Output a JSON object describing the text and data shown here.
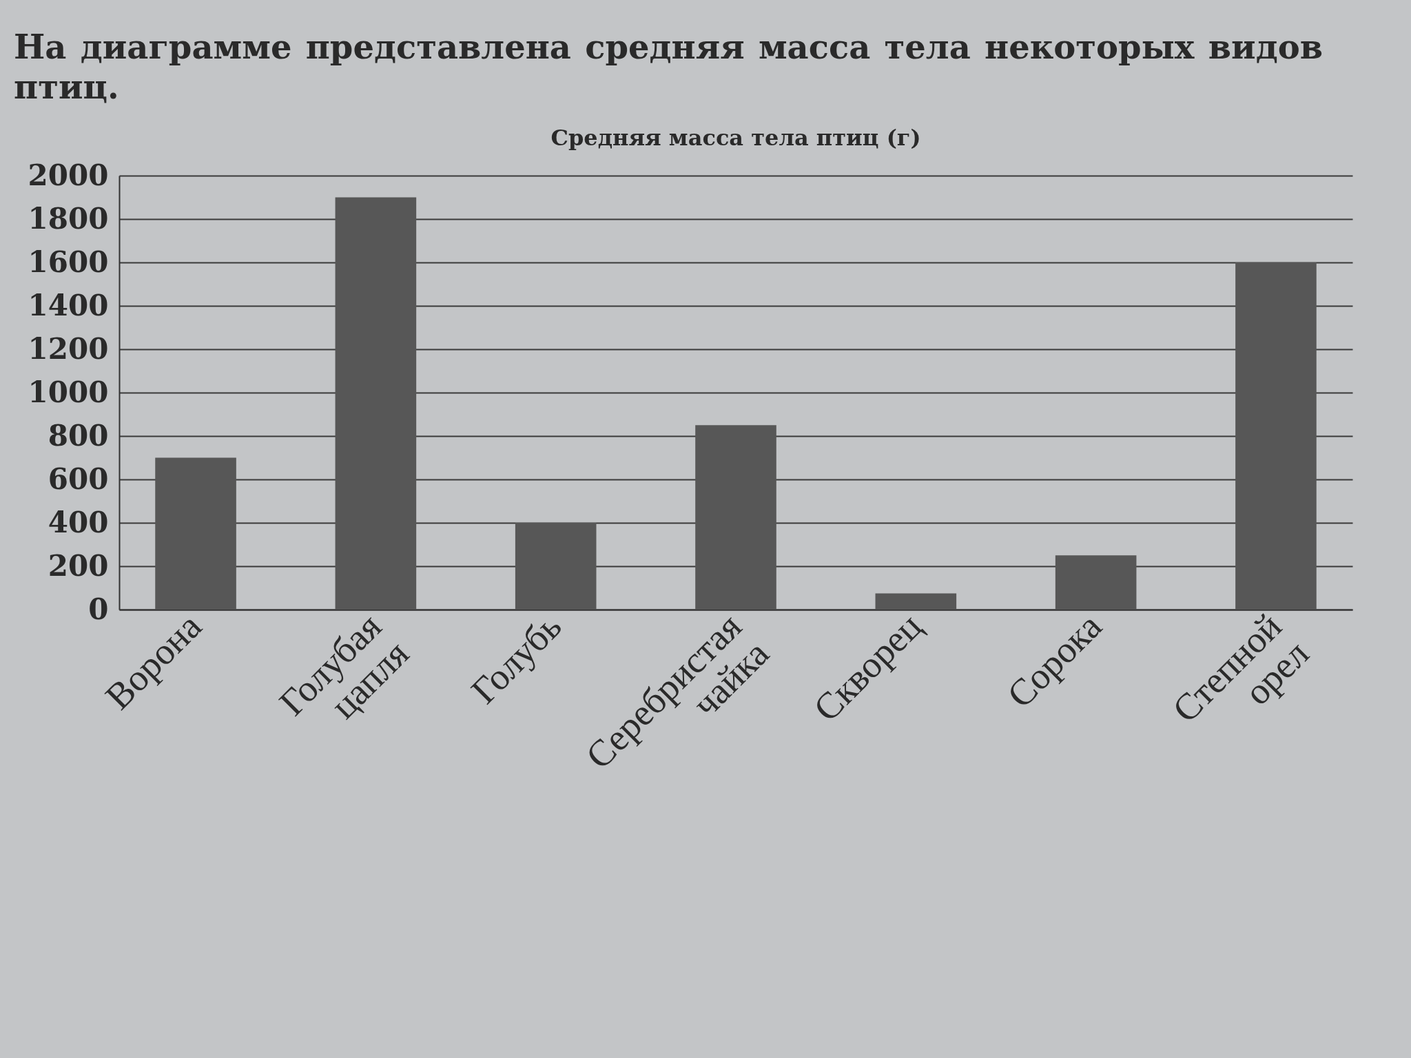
{
  "chart_data": {
    "type": "bar",
    "title": "Средняя масса тела птиц (г)",
    "annotations": [
      "На диаграмме представлена средняя масса тела некоторых видов птиц."
    ],
    "categories": [
      "Ворона",
      "Голубая цапля",
      "Голубь",
      "Серебристая чайка",
      "Скворец",
      "Сорока",
      "Степной орел"
    ],
    "values": [
      700,
      1900,
      400,
      850,
      75,
      250,
      1600
    ],
    "color": "#575757",
    "ylim": [
      0,
      2000
    ],
    "yticks": [
      0,
      200,
      400,
      600,
      800,
      {
        "value": 1000,
        "label": "1000"
      },
      {
        "value": 1200,
        "label": "1200"
      },
      {
        "value": 1400,
        "label": "1400"
      },
      {
        "value": 1600,
        "label": "1600"
      },
      {
        "value": 1800,
        "label": "1800"
      },
      {
        "value": 2000,
        "label": "2000"
      }
    ],
    "grid": "y"
  }
}
